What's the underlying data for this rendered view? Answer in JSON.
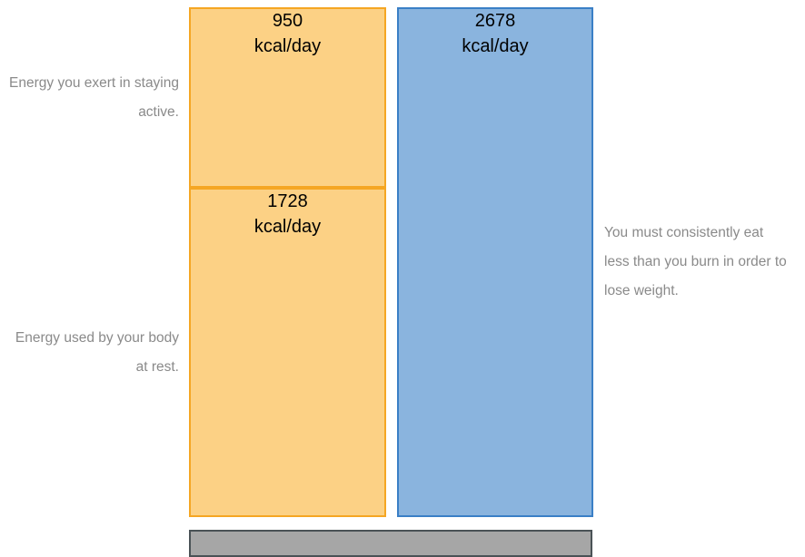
{
  "chart_data": {
    "type": "stacked-bar",
    "unit": "kcal/day",
    "stacks": [
      {
        "color": "#fcd185",
        "border": "#f5a623",
        "segments": [
          {
            "value": 1728,
            "note": "Energy used by your body at rest."
          },
          {
            "value": 950,
            "note": "Energy you exert in staying active."
          }
        ]
      },
      {
        "color": "#8ab4de",
        "border": "#3a7fc6",
        "segments": [
          {
            "value": 2678,
            "note": "You must consistently eat less than you burn in order to lose weight."
          }
        ]
      }
    ]
  }
}
